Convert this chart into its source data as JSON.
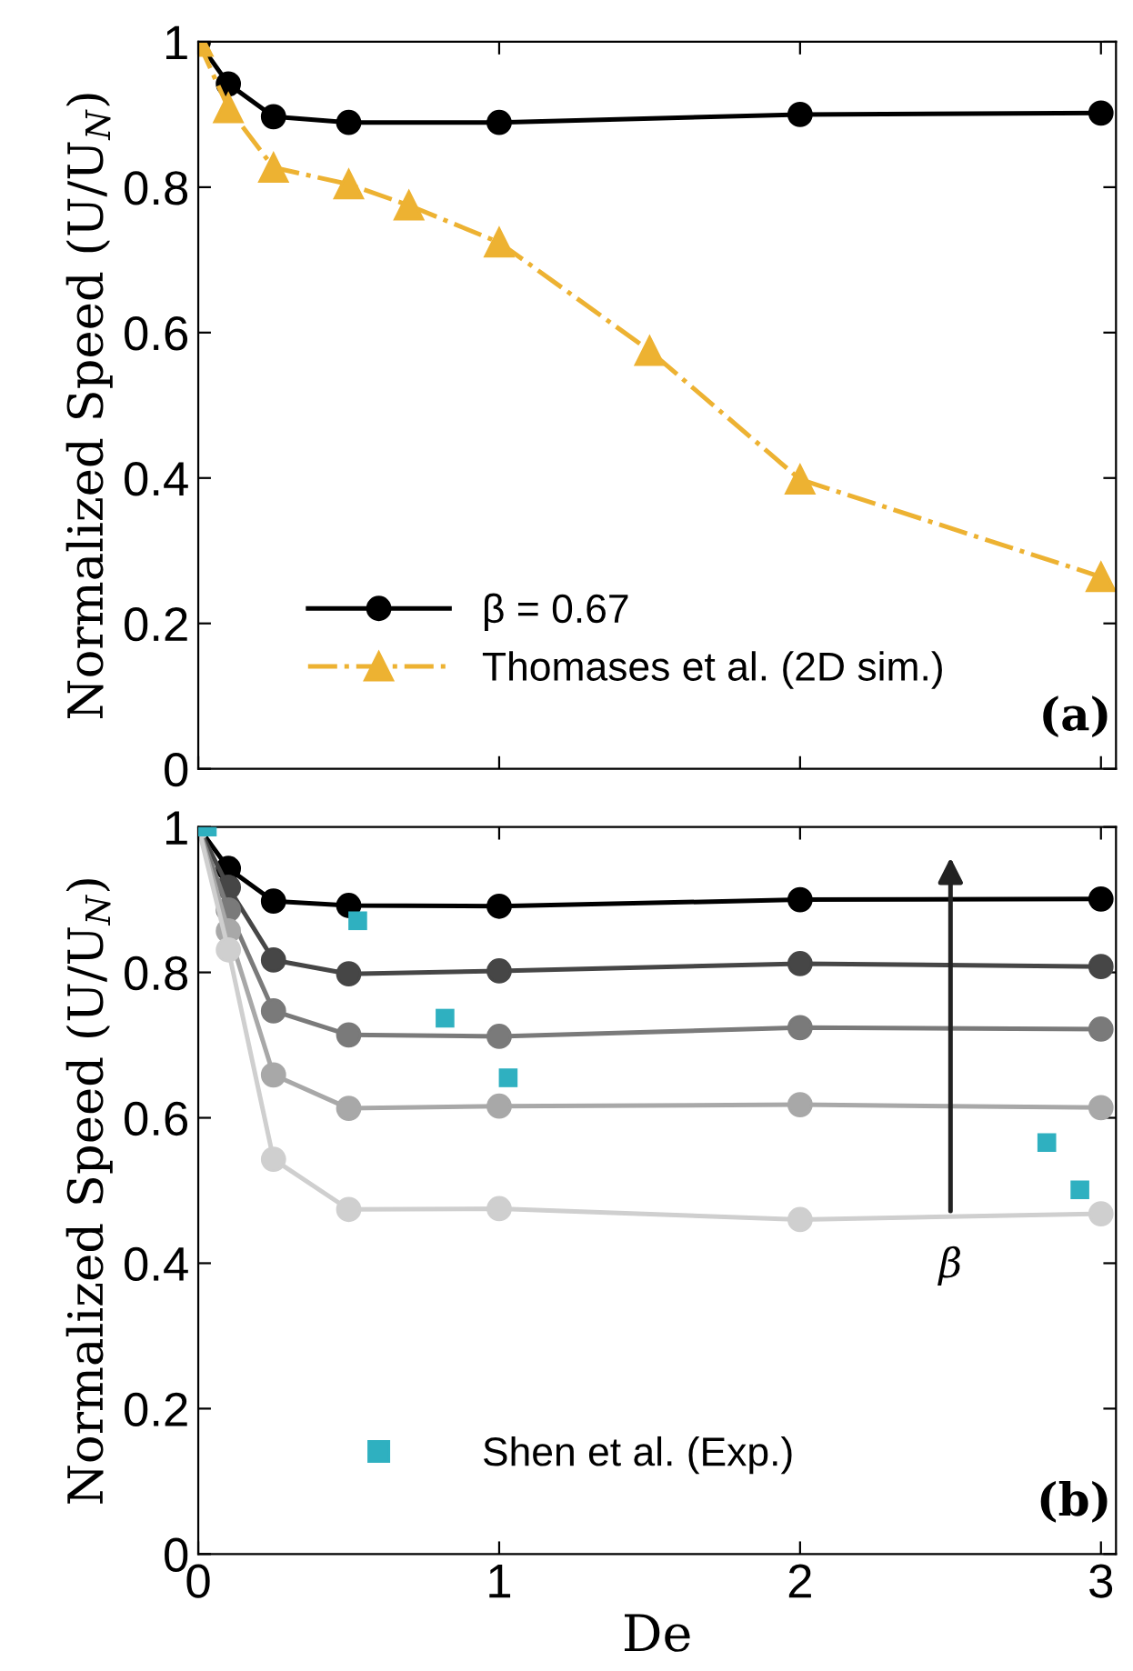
{
  "chart_data": [
    {
      "type": "line",
      "ylabel": "Normalized Speed (U/U$_{N}$)",
      "xlim": [
        0,
        3.05
      ],
      "ylim": [
        0,
        1
      ],
      "xticks": [
        0,
        1,
        2,
        3
      ],
      "yticks": [
        0,
        0.2,
        0.4,
        0.6,
        0.8,
        1
      ],
      "tick_labels": "y",
      "grid": false,
      "legend": "bottom left",
      "annotations": [
        "(a)"
      ],
      "series": [
        {
          "name": "β = 0.67",
          "color": "#000000",
          "marker": "circle",
          "line_style": "solid",
          "x": [
            0,
            0.1,
            0.25,
            0.5,
            1,
            2,
            3
          ],
          "values": [
            1,
            0.942,
            0.897,
            0.889,
            0.889,
            0.9,
            0.902
          ]
        },
        {
          "name": "Thomases et al. (2D sim.)",
          "color": "#edb232",
          "marker": "triangle",
          "line_style": "dashdot",
          "x": [
            0,
            0.1,
            0.25,
            0.5,
            0.7,
            1,
            1.5,
            2,
            3
          ],
          "values": [
            1,
            0.909,
            0.827,
            0.804,
            0.775,
            0.724,
            0.575,
            0.398,
            0.264
          ]
        }
      ]
    },
    {
      "type": "line",
      "xlabel": "De",
      "ylabel": "Normalized Speed (U/U$_{N}$)",
      "xlim": [
        0,
        3.05
      ],
      "ylim": [
        0,
        1
      ],
      "xticks": [
        0,
        1,
        2,
        3
      ],
      "yticks": [
        0,
        0.2,
        0.4,
        0.6,
        0.8,
        1
      ],
      "grid": false,
      "legend": "bottom left",
      "annotations": [
        "(b)",
        {
          "text": "β",
          "x": 2.5,
          "y": 0.465
        }
      ],
      "series": [
        {
          "color": "#000000",
          "marker": "circle",
          "line_style": "solid",
          "x": [
            0,
            0.1,
            0.25,
            0.5,
            1,
            2,
            3
          ],
          "values": [
            1,
            0.943,
            0.898,
            0.892,
            0.891,
            0.9,
            0.901
          ]
        },
        {
          "color": "#464646",
          "marker": "circle",
          "line_style": "solid",
          "x": [
            0,
            0.1,
            0.25,
            0.5,
            1,
            2,
            3
          ],
          "values": [
            1,
            0.917,
            0.817,
            0.798,
            0.802,
            0.812,
            0.808
          ]
        },
        {
          "color": "#7a7a7a",
          "marker": "circle",
          "line_style": "solid",
          "x": [
            0,
            0.1,
            0.25,
            0.5,
            1,
            2,
            3
          ],
          "values": [
            1,
            0.886,
            0.747,
            0.714,
            0.712,
            0.724,
            0.722
          ]
        },
        {
          "color": "#a8a8a8",
          "marker": "circle",
          "line_style": "solid",
          "x": [
            0,
            0.1,
            0.25,
            0.5,
            1,
            2,
            3
          ],
          "values": [
            1,
            0.857,
            0.659,
            0.613,
            0.616,
            0.618,
            0.614
          ]
        },
        {
          "color": "#cfcfcf",
          "marker": "circle",
          "line_style": "solid",
          "x": [
            0,
            0.1,
            0.25,
            0.5,
            1,
            2,
            3
          ],
          "values": [
            1,
            0.831,
            0.543,
            0.474,
            0.475,
            0.46,
            0.468
          ]
        },
        {
          "type": "scatter",
          "name": "Shen et al. (Exp.)",
          "color": "#2fb0c0",
          "marker": "square",
          "x": [
            0.03,
            0.53,
            0.82,
            1.03,
            2.82,
            2.93
          ],
          "values": [
            1,
            0.871,
            0.737,
            0.655,
            0.566,
            0.501
          ]
        }
      ]
    }
  ]
}
